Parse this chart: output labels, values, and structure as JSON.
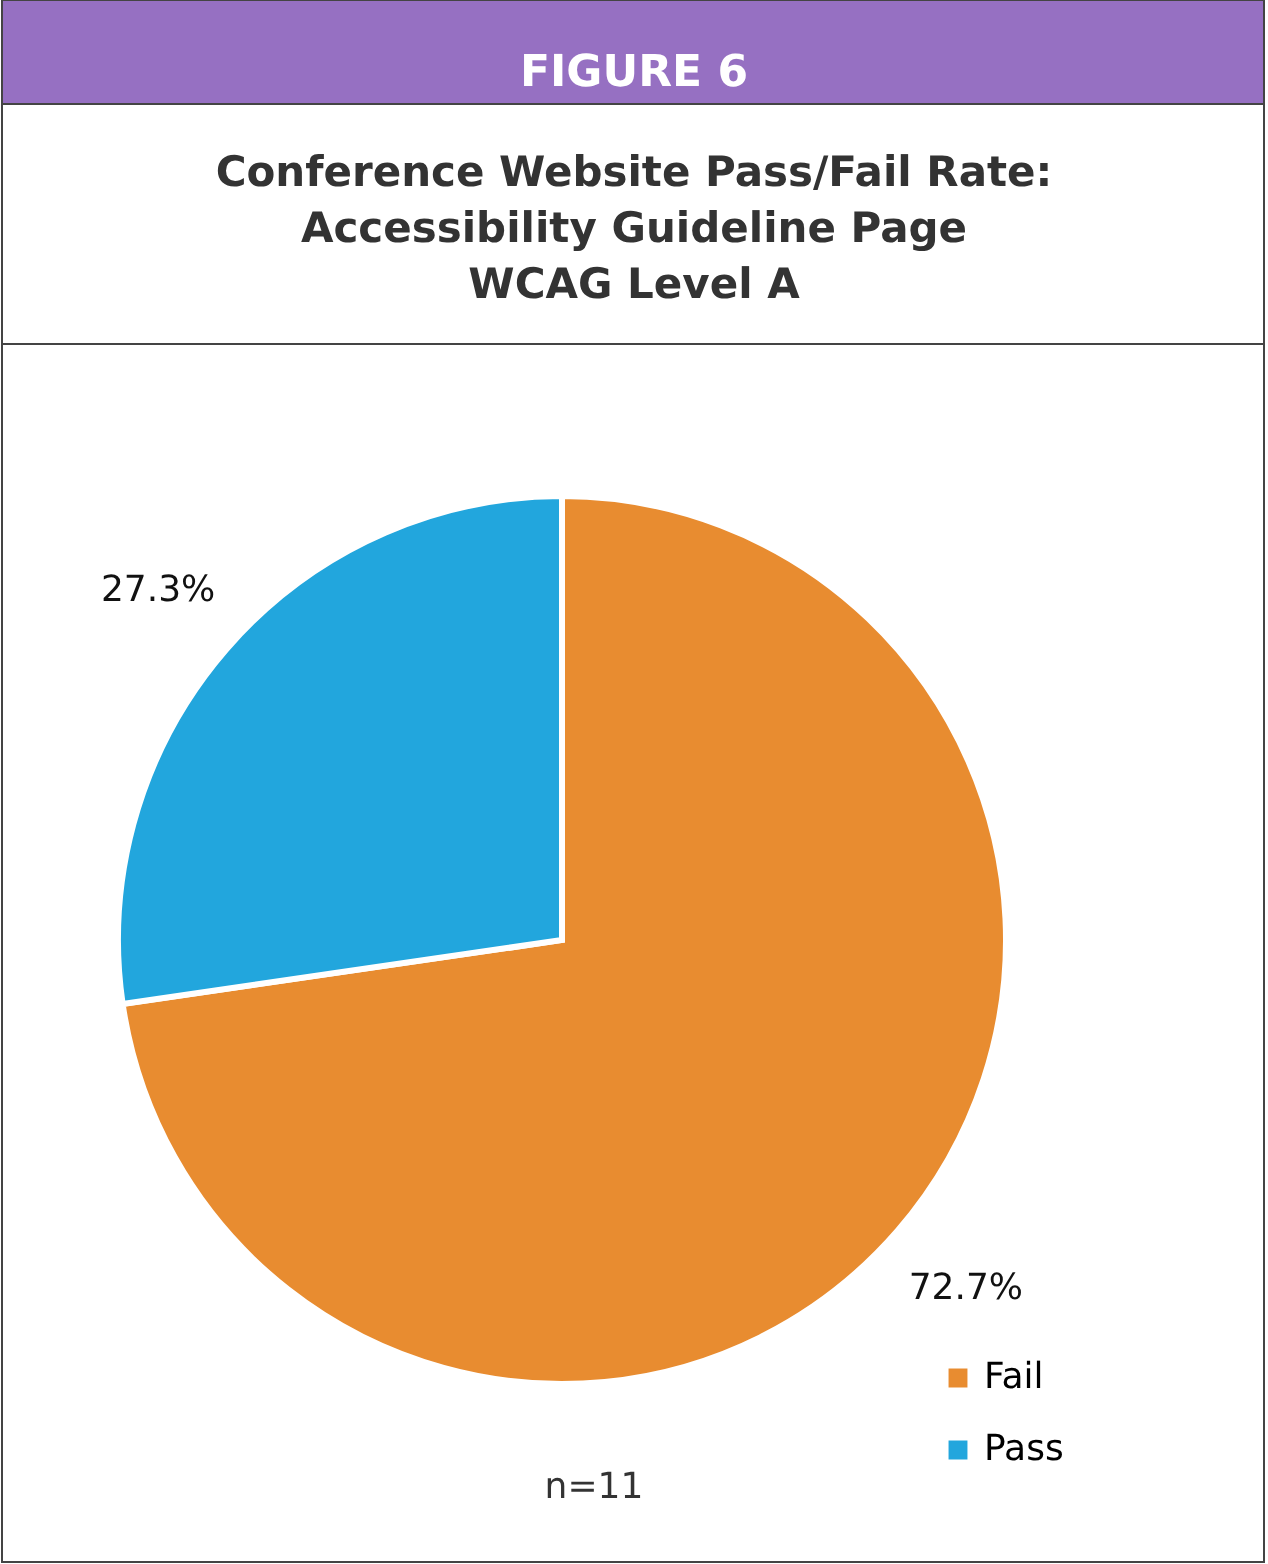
{
  "chart_data": {
    "type": "pie",
    "title": "Conference Website Pass/Fail Rate:\nAccessibility Guideline Page\nWCAG Level A",
    "annotations": [
      "FIGURE 6",
      "n=11"
    ],
    "categories": [
      "Fail",
      "Pass"
    ],
    "values": [
      72.7,
      27.3
    ],
    "colors": [
      "#e88c30",
      "#22a6dd"
    ],
    "value_labels": [
      "72.7%",
      "27.3%"
    ],
    "legend": "bottom right"
  }
}
